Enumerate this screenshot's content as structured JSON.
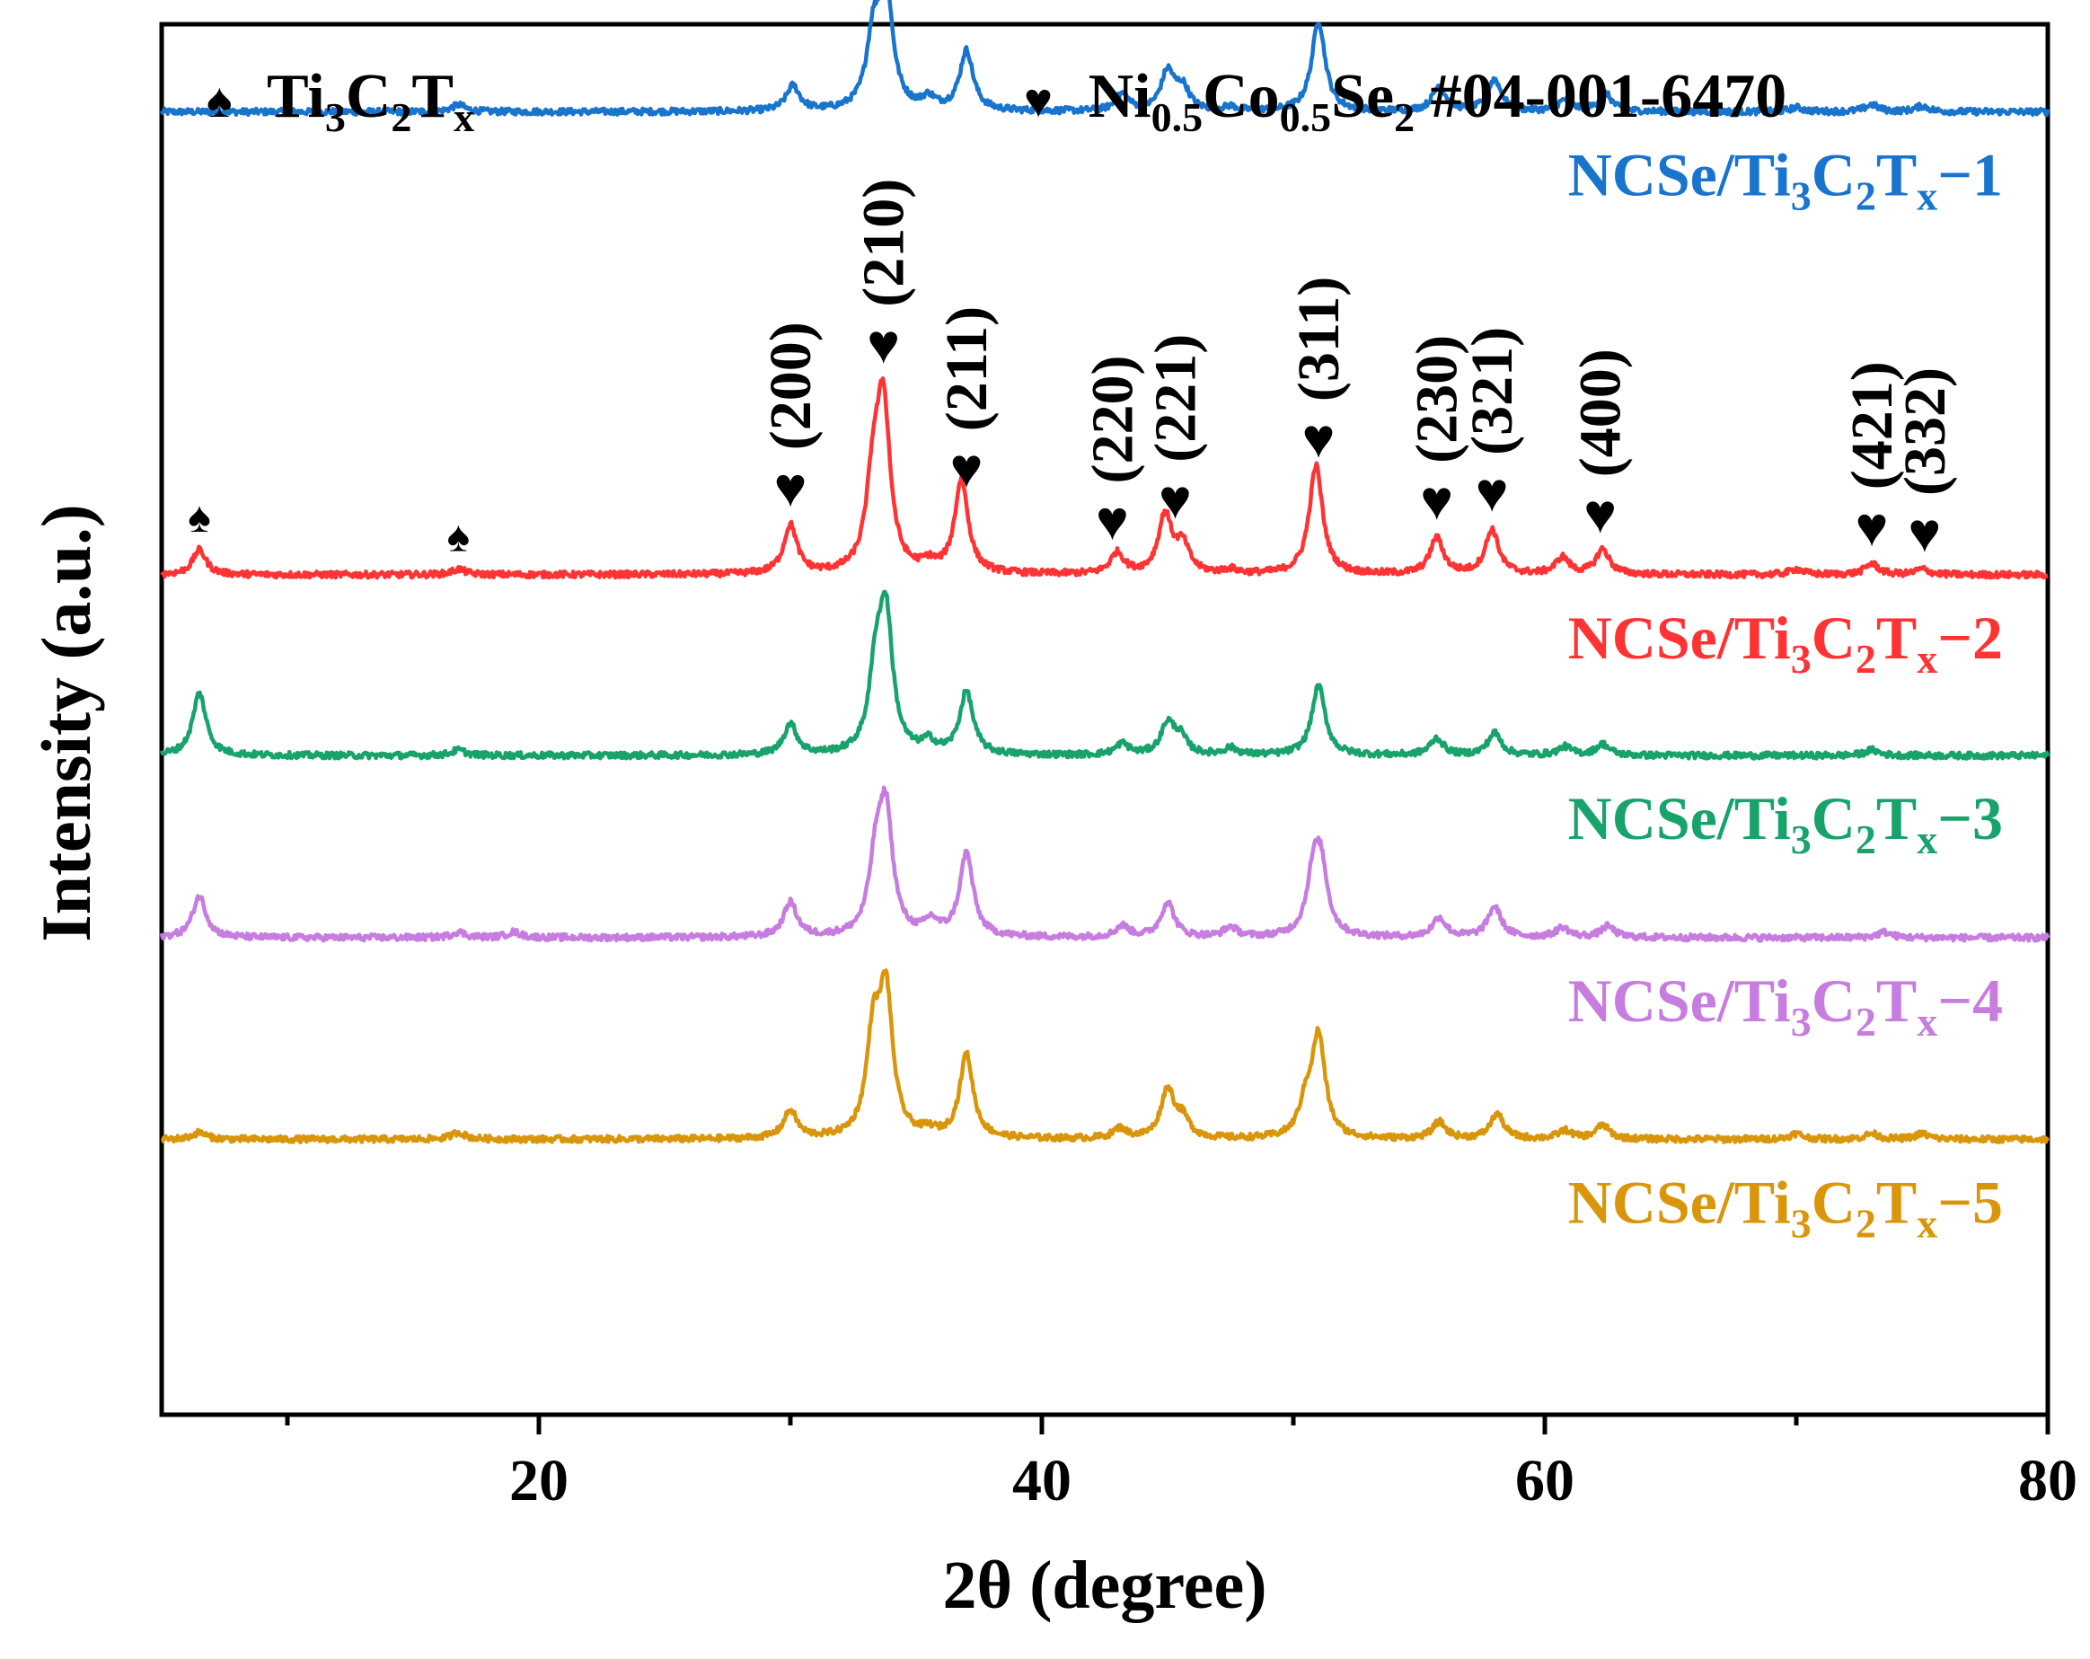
{
  "chart_data": {
    "type": "line",
    "title": "",
    "xlabel": "2θ (degree)",
    "ylabel": "Intensity  (a.u.)",
    "xlim": [
      5,
      80
    ],
    "ylim": [
      0,
      100
    ],
    "xticks_major": [
      20,
      40,
      60,
      80
    ],
    "xticks_minor": [
      10,
      30,
      50,
      70
    ],
    "xtick_labels": [
      "20",
      "40",
      "60",
      "80"
    ],
    "yticks": "none",
    "grid": false,
    "legend": {
      "placement": "top",
      "entries": [
        {
          "symbol": "♠",
          "text": "Ti",
          "sub1": "3",
          "text2": "C",
          "sub2": "2",
          "text3": "T",
          "sub3": "x"
        },
        {
          "symbol": "♥",
          "text": "Ni",
          "sub1": "0.5",
          "text2": "Co",
          "sub2": "0.5",
          "text3": "Se",
          "sub3": "2",
          "text4": " #04-001-6470"
        }
      ]
    },
    "series": [
      {
        "name": "NCSe/Ti3C2Tx−1",
        "label_main": "NCSe/Ti",
        "label_sub1": "3",
        "label_c": "C",
        "label_sub2": "2",
        "label_t": "T",
        "label_sub3": "x",
        "label_suffix": "−1",
        "color": "#1874CD",
        "baseline": 93.7,
        "peaks": [
          [
            6.5,
            0
          ],
          [
            16.8,
            0.5
          ],
          [
            30.1,
            1.8
          ],
          [
            33.3,
            5.0
          ],
          [
            33.8,
            8.5
          ],
          [
            35.5,
            0.8
          ],
          [
            37.0,
            4.3
          ],
          [
            43.2,
            1.2
          ],
          [
            45.0,
            2.8
          ],
          [
            45.6,
            1.6
          ],
          [
            47.5,
            0.3
          ],
          [
            51.0,
            6.5
          ],
          [
            55.8,
            1.8
          ],
          [
            58.0,
            2.3
          ],
          [
            60.8,
            0.8
          ],
          [
            62.4,
            1.3
          ],
          [
            70.0,
            0.3
          ],
          [
            73.0,
            0.5
          ],
          [
            75.0,
            0.4
          ]
        ]
      },
      {
        "name": "NCSe/Ti3C2Tx−2",
        "label_main": "NCSe/Ti",
        "label_sub1": "3",
        "label_c": "C",
        "label_sub2": "2",
        "label_t": "T",
        "label_sub3": "x",
        "label_suffix": "−2",
        "color": "#FF3333",
        "baseline": 60.4,
        "peaks": [
          [
            6.5,
            1.8
          ],
          [
            16.8,
            0.4
          ],
          [
            30.0,
            3.5
          ],
          [
            33.3,
            6.0
          ],
          [
            33.7,
            11.5
          ],
          [
            35.5,
            0.6
          ],
          [
            36.8,
            6.7
          ],
          [
            43.0,
            1.5
          ],
          [
            44.9,
            4.2
          ],
          [
            45.6,
            2.0
          ],
          [
            47.5,
            0.3
          ],
          [
            50.9,
            7.8
          ],
          [
            55.7,
            2.6
          ],
          [
            57.9,
            3.2
          ],
          [
            60.7,
            1.2
          ],
          [
            62.3,
            1.8
          ],
          [
            70.0,
            0.4
          ],
          [
            73.0,
            0.8
          ],
          [
            75.0,
            0.4
          ]
        ]
      },
      {
        "name": "NCSe/Ti3C2Tx−3",
        "label_main": "NCSe/Ti",
        "label_sub1": "3",
        "label_c": "C",
        "label_sub2": "2",
        "label_t": "T",
        "label_sub3": "x",
        "label_suffix": "−3",
        "color": "#17A36B",
        "baseline": 47.4,
        "peaks": [
          [
            6.5,
            4.5
          ],
          [
            16.8,
            0.4
          ],
          [
            30.0,
            2.2
          ],
          [
            33.4,
            5.5
          ],
          [
            33.8,
            9.5
          ],
          [
            35.5,
            0.8
          ],
          [
            37.0,
            4.5
          ],
          [
            43.2,
            0.8
          ],
          [
            45.0,
            2.2
          ],
          [
            45.5,
            1.2
          ],
          [
            47.5,
            0.5
          ],
          [
            51.0,
            5.0
          ],
          [
            55.7,
            1.2
          ],
          [
            58.0,
            1.6
          ],
          [
            60.8,
            0.6
          ],
          [
            62.3,
            0.8
          ],
          [
            73.0,
            0.4
          ]
        ]
      },
      {
        "name": "NCSe/Ti3C2Tx−4",
        "label_main": "NCSe/Ti",
        "label_sub1": "3",
        "label_c": "C",
        "label_sub2": "2",
        "label_t": "T",
        "label_sub3": "x",
        "label_suffix": "−4",
        "color": "#C77CE0",
        "baseline": 34.3,
        "peaks": [
          [
            6.5,
            3.0
          ],
          [
            16.8,
            0.4
          ],
          [
            19.0,
            0.4
          ],
          [
            30.0,
            2.5
          ],
          [
            33.4,
            5.0
          ],
          [
            33.8,
            8.5
          ],
          [
            35.6,
            1.0
          ],
          [
            37.0,
            6.0
          ],
          [
            43.2,
            0.8
          ],
          [
            45.0,
            2.5
          ],
          [
            47.5,
            0.7
          ],
          [
            50.8,
            4.0
          ],
          [
            51.1,
            4.5
          ],
          [
            55.8,
            1.4
          ],
          [
            58.0,
            2.2
          ],
          [
            60.7,
            0.7
          ],
          [
            62.5,
            0.8
          ],
          [
            73.5,
            0.4
          ]
        ]
      },
      {
        "name": "NCSe/Ti3C2Tx−5",
        "label_main": "NCSe/Ti",
        "label_sub1": "3",
        "label_c": "C",
        "label_sub2": "2",
        "label_t": "T",
        "label_sub3": "x",
        "label_suffix": "−5",
        "color": "#D9960B",
        "baseline": 19.8,
        "peaks": [
          [
            6.5,
            0.5
          ],
          [
            16.8,
            0.5
          ],
          [
            30.0,
            2.0
          ],
          [
            33.3,
            7.0
          ],
          [
            33.8,
            10.0
          ],
          [
            35.5,
            0.4
          ],
          [
            37.0,
            6.0
          ],
          [
            43.1,
            0.7
          ],
          [
            45.0,
            3.5
          ],
          [
            45.6,
            1.3
          ],
          [
            50.5,
            2.2
          ],
          [
            51.0,
            7.2
          ],
          [
            55.8,
            1.2
          ],
          [
            58.1,
            1.8
          ],
          [
            60.8,
            0.6
          ],
          [
            62.3,
            1.0
          ],
          [
            70.0,
            0.4
          ],
          [
            73.0,
            0.4
          ],
          [
            75.0,
            0.4
          ]
        ]
      }
    ],
    "annotations": [
      {
        "label": "(200)",
        "x": 30.0,
        "symbol": "♥"
      },
      {
        "label": "(210)",
        "x": 33.7,
        "symbol": "♥"
      },
      {
        "label": "(211)",
        "x": 37.0,
        "symbol": "♥"
      },
      {
        "label": "(220)",
        "x": 42.8,
        "symbol": "♥"
      },
      {
        "label": "(221)",
        "x": 45.3,
        "symbol": "♥"
      },
      {
        "label": "(311)",
        "x": 51.0,
        "symbol": "♥"
      },
      {
        "label": "(230)",
        "x": 55.7,
        "symbol": "♥"
      },
      {
        "label": "(321)",
        "x": 57.9,
        "symbol": "♥"
      },
      {
        "label": "(400)",
        "x": 62.2,
        "symbol": "♥"
      },
      {
        "label": "(421)",
        "x": 73.0,
        "symbol": "♥"
      },
      {
        "label": "(332)",
        "x": 75.1,
        "symbol": "♥"
      },
      {
        "label": "",
        "x": 6.5,
        "symbol": "♠"
      },
      {
        "label": "",
        "x": 16.8,
        "symbol": "♠"
      }
    ]
  }
}
